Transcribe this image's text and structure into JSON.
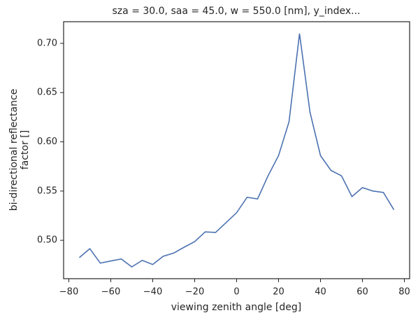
{
  "chart_data": {
    "type": "line",
    "title": "sza = 30.0, saa = 45.0, w = 550.0 [nm], y_index...",
    "xlabel": "viewing zenith angle [deg]",
    "ylabel": [
      "bi-directional reflectance",
      "factor []"
    ],
    "x": [
      -75,
      -70,
      -65,
      -60,
      -55,
      -50,
      -45,
      -40,
      -35,
      -30,
      -25,
      -20,
      -15,
      -10,
      -5,
      0,
      5,
      10,
      15,
      20,
      25,
      30,
      35,
      40,
      45,
      50,
      55,
      60,
      65,
      70,
      75
    ],
    "series": [
      {
        "color": "#4c72b0",
        "values": [
          0.4824,
          0.4915,
          0.4768,
          0.479,
          0.481,
          0.473,
          0.4796,
          0.4754,
          0.4838,
          0.487,
          0.493,
          0.4986,
          0.5085,
          0.508,
          0.518,
          0.528,
          0.5437,
          0.542,
          0.5655,
          0.586,
          0.6204,
          0.7099,
          0.63,
          0.586,
          0.571,
          0.5655,
          0.5444,
          0.5535,
          0.55,
          0.5486,
          0.531
        ]
      }
    ],
    "xlim": [
      -82.5,
      82.5
    ],
    "ylim": [
      0.461,
      0.722
    ],
    "xticks": [
      {
        "value": -80,
        "label": "−80"
      },
      {
        "value": -60,
        "label": "−60"
      },
      {
        "value": -40,
        "label": "−40"
      },
      {
        "value": -20,
        "label": "−20"
      },
      0,
      20,
      40,
      60,
      80
    ],
    "yticks": [
      {
        "value": 0.5,
        "label": "0.50"
      },
      0.55,
      {
        "value": 0.6,
        "label": "0.60"
      },
      0.65,
      {
        "value": 0.7,
        "label": "0.70"
      }
    ],
    "grid": false
  }
}
